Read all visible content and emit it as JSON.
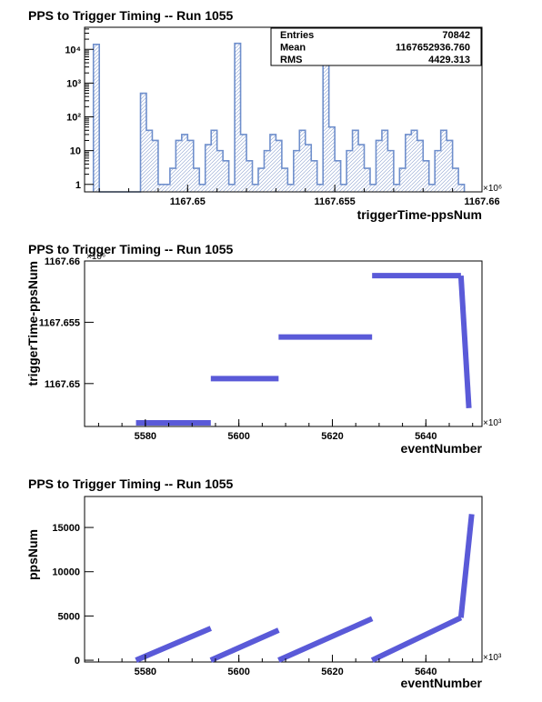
{
  "chart_data": [
    {
      "type": "bar",
      "title": "PPS to Trigger Timing -- Run 1055",
      "xlabel": "triggerTime-ppsNum",
      "ylabel": "",
      "x_multiplier": "×10⁶",
      "x_range": [
        1167.6465,
        1167.66
      ],
      "y_scale": "log",
      "ylim": [
        0.6,
        45000
      ],
      "x_ticks": [
        1167.65,
        1167.655,
        1167.66
      ],
      "x_tick_labels": [
        "1167.65",
        "1167.655",
        "1167.66"
      ],
      "y_ticks": [
        1,
        10,
        100,
        1000,
        10000
      ],
      "y_tick_labels": [
        "1",
        "10",
        "10²",
        "10³",
        "10⁴"
      ],
      "stats": [
        {
          "label": "Entries",
          "value": "70842"
        },
        {
          "label": "Mean",
          "value": "1167652936.760"
        },
        {
          "label": "RMS",
          "value": "4429.313"
        }
      ],
      "bin_width": 0.0002,
      "x": [
        1167.6469,
        1167.6471,
        1167.6473,
        1167.6475,
        1167.6477,
        1167.6479,
        1167.6481,
        1167.6483,
        1167.6485,
        1167.6487,
        1167.6489,
        1167.6491,
        1167.6493,
        1167.6495,
        1167.6497,
        1167.6499,
        1167.6501,
        1167.6503,
        1167.6505,
        1167.6507,
        1167.6509,
        1167.6511,
        1167.6513,
        1167.6515,
        1167.6517,
        1167.6519,
        1167.6521,
        1167.6523,
        1167.6525,
        1167.6527,
        1167.6529,
        1167.6531,
        1167.6533,
        1167.6535,
        1167.6537,
        1167.6539,
        1167.6541,
        1167.6543,
        1167.6545,
        1167.6547,
        1167.6549,
        1167.6551,
        1167.6553,
        1167.6555,
        1167.6557,
        1167.6559,
        1167.6561,
        1167.6563,
        1167.6565,
        1167.6567,
        1167.6569,
        1167.6571,
        1167.6573,
        1167.6575,
        1167.6577,
        1167.6579,
        1167.6581,
        1167.6583,
        1167.6585,
        1167.6587,
        1167.6589,
        1167.6591,
        1167.6593
      ],
      "values": [
        14000,
        0,
        0,
        0,
        0,
        0,
        0,
        0,
        500,
        40,
        20,
        1,
        1,
        3,
        20,
        30,
        20,
        3,
        1,
        15,
        40,
        10,
        5,
        1,
        15000,
        30,
        5,
        1,
        3,
        10,
        30,
        20,
        3,
        1,
        10,
        40,
        15,
        5,
        1,
        15000,
        50,
        5,
        1,
        10,
        40,
        15,
        3,
        1,
        20,
        40,
        10,
        1,
        3,
        30,
        40,
        20,
        5,
        1,
        10,
        40,
        20,
        3,
        1
      ]
    },
    {
      "type": "scatter",
      "title": "PPS to Trigger Timing -- Run 1055",
      "xlabel": "eventNumber",
      "ylabel": "triggerTime-ppsNum",
      "x_multiplier": "×10³",
      "y_multiplier": "×10⁶",
      "xlim": [
        5567,
        5652
      ],
      "ylim": [
        1167.6465,
        1167.66
      ],
      "x_ticks": [
        5580,
        5600,
        5620,
        5640
      ],
      "x_tick_labels": [
        "5580",
        "5600",
        "5620",
        "5640"
      ],
      "y_ticks": [
        1167.65,
        1167.655,
        1167.66
      ],
      "y_tick_labels": [
        "1167.65",
        "1167.655",
        "1167.66"
      ],
      "segments": [
        {
          "x": [
            5578,
            5594
          ],
          "y": [
            1167.6468,
            1167.6468
          ]
        },
        {
          "x": [
            5594,
            5608.5
          ],
          "y": [
            1167.6504,
            1167.6504
          ]
        },
        {
          "x": [
            5608.5,
            5628.5
          ],
          "y": [
            1167.6538,
            1167.6538
          ]
        },
        {
          "x": [
            5628.5,
            5647.5
          ],
          "y": [
            1167.6588,
            1167.6588
          ]
        },
        {
          "x": [
            5647.5,
            5649.2
          ],
          "y": [
            1167.6588,
            1167.648
          ]
        }
      ]
    },
    {
      "type": "scatter",
      "title": "PPS to Trigger Timing -- Run 1055",
      "xlabel": "eventNumber",
      "ylabel": "ppsNum",
      "x_multiplier": "×10³",
      "xlim": [
        5567,
        5652
      ],
      "ylim": [
        -200,
        18500
      ],
      "x_ticks": [
        5580,
        5600,
        5620,
        5640
      ],
      "x_tick_labels": [
        "5580",
        "5600",
        "5620",
        "5640"
      ],
      "y_ticks": [
        0,
        5000,
        10000,
        15000
      ],
      "y_tick_labels": [
        "0",
        "5000",
        "10000",
        "15000"
      ],
      "segments": [
        {
          "x": [
            5578,
            5594
          ],
          "y": [
            0,
            3600
          ]
        },
        {
          "x": [
            5594,
            5608.5
          ],
          "y": [
            0,
            3400
          ]
        },
        {
          "x": [
            5608.5,
            5628.5
          ],
          "y": [
            0,
            4700
          ]
        },
        {
          "x": [
            5628.5,
            5647.5
          ],
          "y": [
            0,
            4800
          ]
        },
        {
          "x": [
            5647.5,
            5649.8
          ],
          "y": [
            4800,
            16500
          ]
        }
      ]
    }
  ],
  "colors": {
    "histogram_line": "#6f8fcc",
    "marker": "#5a5ad8",
    "axis": "#000000"
  }
}
